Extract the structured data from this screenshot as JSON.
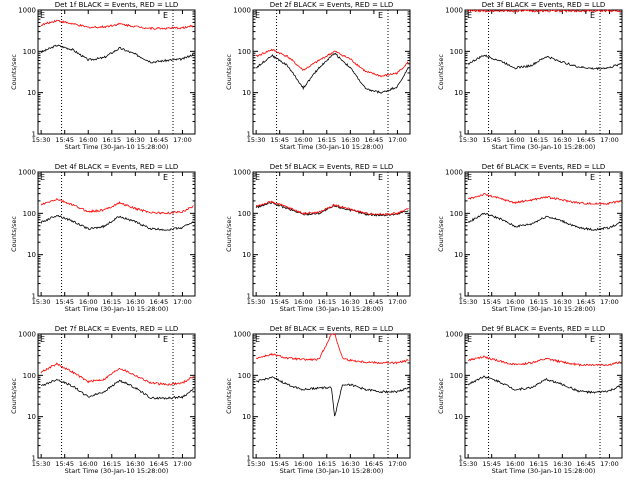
{
  "colors": {
    "events": "#000000",
    "lld": "#ff0000",
    "background": "#ffffff",
    "axes": "#000000"
  },
  "shared": {
    "xlabel": "Start Time (30-Jan-10 15:28:00)",
    "ylabel": "Counts/sec",
    "x_ticks": [
      "15:30",
      "15:45",
      "16:00",
      "16:15",
      "16:30",
      "16:45",
      "17:00"
    ],
    "y_ticks": [
      "1",
      "10",
      "100",
      "1000"
    ],
    "markers": [
      "E",
      "E"
    ]
  },
  "chart_data": [
    {
      "type": "line",
      "title": "Det 1f BLACK = Events, RED = LLD",
      "y_scale": "log",
      "ylim": [
        1,
        1000
      ],
      "xlim": [
        "15:28",
        "17:08"
      ],
      "x": [
        "15:30",
        "15:40",
        "15:50",
        "16:00",
        "16:10",
        "16:20",
        "16:30",
        "16:40",
        "16:50",
        "17:00",
        "17:07"
      ],
      "series": [
        {
          "name": "Events",
          "color": "black",
          "values": [
            95,
            140,
            110,
            62,
            70,
            120,
            85,
            55,
            60,
            65,
            85
          ]
        },
        {
          "name": "LLD",
          "color": "red",
          "values": [
            430,
            560,
            460,
            380,
            390,
            460,
            400,
            360,
            360,
            370,
            410
          ]
        }
      ]
    },
    {
      "type": "line",
      "title": "Det 2f BLACK = Events, RED = LLD",
      "y_scale": "log",
      "ylim": [
        1,
        1000
      ],
      "xlim": [
        "15:28",
        "17:08"
      ],
      "x": [
        "15:30",
        "15:40",
        "15:50",
        "16:00",
        "16:10",
        "16:20",
        "16:30",
        "16:40",
        "16:50",
        "17:00",
        "17:07"
      ],
      "series": [
        {
          "name": "Events",
          "color": "black",
          "values": [
            40,
            80,
            45,
            13,
            40,
            90,
            40,
            12,
            10,
            14,
            40
          ]
        },
        {
          "name": "LLD",
          "color": "red",
          "values": [
            75,
            110,
            75,
            35,
            60,
            100,
            65,
            32,
            25,
            30,
            55
          ]
        }
      ]
    },
    {
      "type": "line",
      "title": "Det 3f BLACK = Events, RED = LLD",
      "y_scale": "log",
      "ylim": [
        1,
        1000
      ],
      "xlim": [
        "15:28",
        "17:08"
      ],
      "x": [
        "15:30",
        "15:40",
        "15:50",
        "16:00",
        "16:10",
        "16:20",
        "16:30",
        "16:40",
        "16:50",
        "17:00",
        "17:07"
      ],
      "series": [
        {
          "name": "Events",
          "color": "black",
          "values": [
            50,
            80,
            60,
            40,
            45,
            75,
            55,
            42,
            38,
            40,
            50
          ]
        },
        {
          "name": "LLD",
          "color": "red",
          "values": [
            950,
            950,
            950,
            950,
            950,
            950,
            950,
            950,
            950,
            950,
            950
          ]
        }
      ]
    },
    {
      "type": "line",
      "title": "Det 4f BLACK = Events, RED = LLD",
      "y_scale": "log",
      "ylim": [
        1,
        1000
      ],
      "xlim": [
        "15:28",
        "17:08"
      ],
      "x": [
        "15:30",
        "15:40",
        "15:50",
        "16:00",
        "16:10",
        "16:20",
        "16:30",
        "16:40",
        "16:50",
        "17:00",
        "17:07"
      ],
      "series": [
        {
          "name": "Events",
          "color": "black",
          "values": [
            60,
            90,
            65,
            42,
            48,
            85,
            62,
            42,
            40,
            45,
            65
          ]
        },
        {
          "name": "LLD",
          "color": "red",
          "values": [
            160,
            220,
            160,
            110,
            120,
            180,
            130,
            105,
            100,
            110,
            150
          ]
        }
      ]
    },
    {
      "type": "line",
      "title": "Det 5f BLACK = Events, RED = LLD",
      "y_scale": "log",
      "ylim": [
        1,
        1000
      ],
      "xlim": [
        "15:28",
        "17:08"
      ],
      "x": [
        "15:30",
        "15:40",
        "15:50",
        "16:00",
        "16:10",
        "16:20",
        "16:30",
        "16:40",
        "16:50",
        "17:00",
        "17:07"
      ],
      "series": [
        {
          "name": "Events",
          "color": "black",
          "values": [
            140,
            180,
            130,
            95,
            100,
            150,
            120,
            95,
            90,
            95,
            120
          ]
        },
        {
          "name": "LLD",
          "color": "red",
          "values": [
            150,
            190,
            140,
            100,
            105,
            160,
            125,
            100,
            95,
            100,
            130
          ]
        }
      ]
    },
    {
      "type": "line",
      "title": "Det 6f BLACK = Events, RED = LLD",
      "y_scale": "log",
      "ylim": [
        1,
        1000
      ],
      "xlim": [
        "15:28",
        "17:08"
      ],
      "x": [
        "15:30",
        "15:40",
        "15:50",
        "16:00",
        "16:10",
        "16:20",
        "16:30",
        "16:40",
        "16:50",
        "17:00",
        "17:07"
      ],
      "series": [
        {
          "name": "Events",
          "color": "black",
          "values": [
            60,
            100,
            75,
            48,
            55,
            85,
            65,
            45,
            40,
            45,
            60
          ]
        },
        {
          "name": "LLD",
          "color": "red",
          "values": [
            220,
            290,
            230,
            180,
            210,
            250,
            210,
            180,
            170,
            175,
            200
          ]
        }
      ]
    },
    {
      "type": "line",
      "title": "Det 7f BLACK = Events, RED = LLD",
      "y_scale": "log",
      "ylim": [
        1,
        1000
      ],
      "xlim": [
        "15:28",
        "17:08"
      ],
      "x": [
        "15:30",
        "15:40",
        "15:50",
        "16:00",
        "16:10",
        "16:20",
        "16:30",
        "16:40",
        "16:50",
        "17:00",
        "17:07"
      ],
      "series": [
        {
          "name": "Events",
          "color": "black",
          "values": [
            55,
            80,
            55,
            30,
            40,
            75,
            50,
            28,
            28,
            30,
            45
          ]
        },
        {
          "name": "LLD",
          "color": "red",
          "values": [
            120,
            190,
            120,
            70,
            80,
            150,
            100,
            65,
            60,
            65,
            95
          ]
        }
      ]
    },
    {
      "type": "line",
      "title": "Det 8f BLACK = Events, RED = LLD",
      "y_scale": "log",
      "ylim": [
        1,
        1000
      ],
      "xlim": [
        "15:28",
        "17:08"
      ],
      "x": [
        "15:30",
        "15:40",
        "15:50",
        "16:00",
        "16:10",
        "16:18",
        "16:20",
        "16:25",
        "16:30",
        "16:40",
        "16:50",
        "17:00",
        "17:07"
      ],
      "series": [
        {
          "name": "Events",
          "color": "black",
          "values": [
            70,
            90,
            60,
            45,
            50,
            50,
            10,
            60,
            60,
            45,
            40,
            40,
            50
          ]
        },
        {
          "name": "LLD",
          "color": "red",
          "values": [
            260,
            320,
            260,
            240,
            240,
            1000,
            1000,
            260,
            230,
            210,
            200,
            200,
            230
          ]
        }
      ]
    },
    {
      "type": "line",
      "title": "Det 9f BLACK = Events, RED = LLD",
      "y_scale": "log",
      "ylim": [
        1,
        1000
      ],
      "xlim": [
        "15:28",
        "17:08"
      ],
      "x": [
        "15:30",
        "15:40",
        "15:50",
        "16:00",
        "16:10",
        "16:20",
        "16:30",
        "16:40",
        "16:50",
        "17:00",
        "17:07"
      ],
      "series": [
        {
          "name": "Events",
          "color": "black",
          "values": [
            60,
            95,
            70,
            45,
            50,
            80,
            60,
            42,
            38,
            42,
            55
          ]
        },
        {
          "name": "LLD",
          "color": "red",
          "values": [
            230,
            280,
            220,
            180,
            200,
            250,
            210,
            180,
            180,
            180,
            210
          ]
        }
      ]
    }
  ]
}
